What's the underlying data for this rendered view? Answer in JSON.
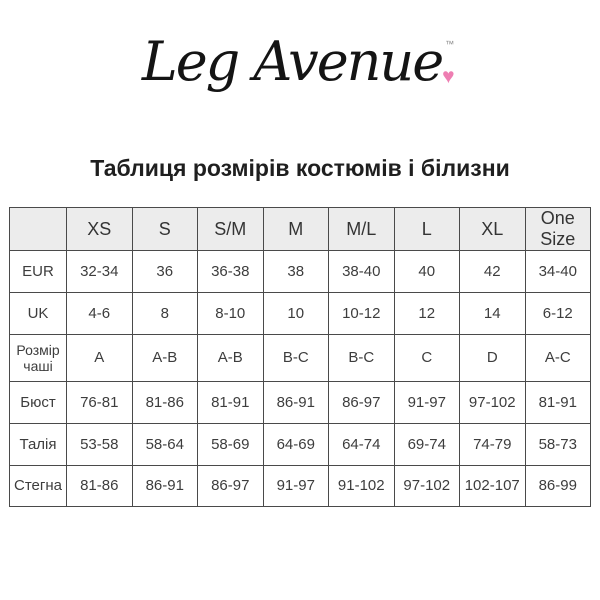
{
  "brand": {
    "logo_text": "Leg Avenue",
    "trademark": "™",
    "heart_icon": "♥",
    "heart_color": "#ee7eb2"
  },
  "title": "Таблиця розмірів костюмів і білизни",
  "table": {
    "size_headers": [
      "",
      "XS",
      "S",
      "S/M",
      "M",
      "M/L",
      "L",
      "XL",
      "One Size"
    ],
    "rows": [
      {
        "label": "EUR",
        "cells": [
          "32-34",
          "36",
          "36-38",
          "38",
          "38-40",
          "40",
          "42",
          "34-40"
        ]
      },
      {
        "label": "UK",
        "cells": [
          "4-6",
          "8",
          "8-10",
          "10",
          "10-12",
          "12",
          "14",
          "6-12"
        ]
      },
      {
        "label": "Розмір чаші",
        "cells": [
          "A",
          "A-B",
          "A-B",
          "B-C",
          "B-C",
          "C",
          "D",
          "A-C"
        ]
      },
      {
        "label": "Бюст",
        "cells": [
          "76-81",
          "81-86",
          "81-91",
          "86-91",
          "86-97",
          "91-97",
          "97-102",
          "81-91"
        ]
      },
      {
        "label": "Талія",
        "cells": [
          "53-58",
          "58-64",
          "58-69",
          "64-69",
          "64-74",
          "69-74",
          "74-79",
          "58-73"
        ]
      },
      {
        "label": "Стегна",
        "cells": [
          "81-86",
          "86-91",
          "86-97",
          "91-97",
          "91-102",
          "97-102",
          "102-107",
          "86-99"
        ]
      }
    ]
  },
  "colors": {
    "header_background": "#ececec",
    "table_border": "#4a4a4a",
    "cell_text": "#3d3d3d"
  }
}
